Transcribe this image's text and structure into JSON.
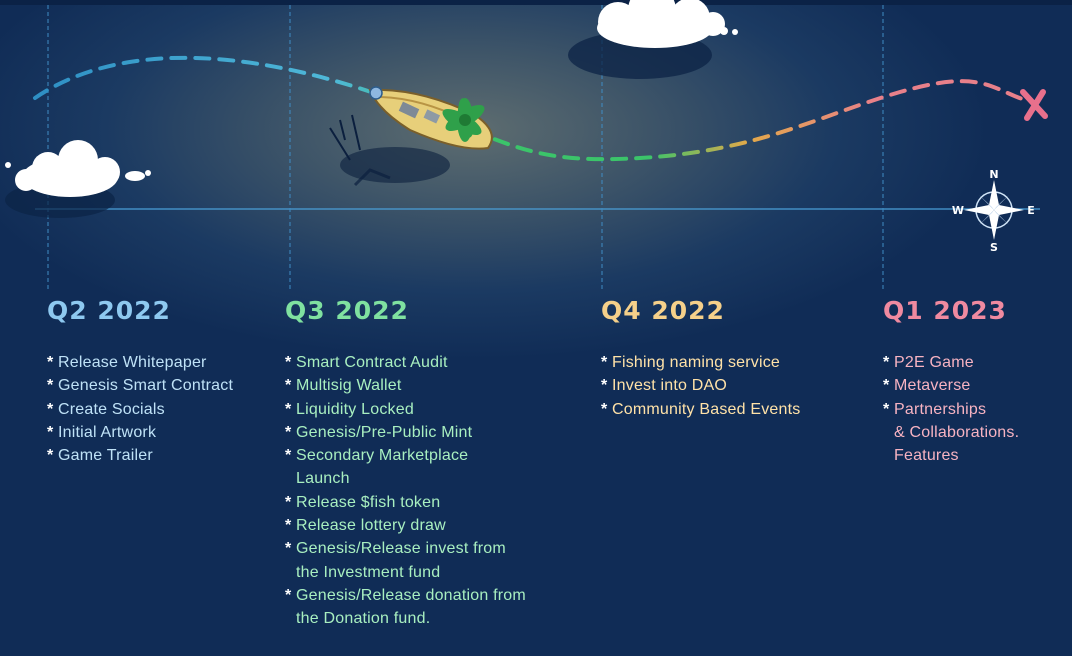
{
  "roadmap": {
    "phases": [
      {
        "title": "Q2 2022",
        "items": [
          "Release Whitepaper",
          "Genesis Smart Contract",
          "Create Socials",
          "Initial Artwork",
          "Game Trailer"
        ]
      },
      {
        "title": "Q3 2022",
        "items": [
          "Smart Contract Audit",
          "Multisig Wallet",
          "Liquidity Locked",
          "Genesis/Pre-Public Mint",
          "Secondary Marketplace\nLaunch",
          "Release $fish token",
          "Release lottery draw",
          "Genesis/Release invest from\nthe Investment fund",
          "Genesis/Release donation from\nthe Donation fund."
        ]
      },
      {
        "title": "Q4 2022",
        "items": [
          "Fishing naming service",
          "Invest into DAO",
          "Community Based Events"
        ]
      },
      {
        "title": "Q1 2023",
        "items": [
          "P2E Game",
          "Metaverse",
          "Partnerships\n& Collaborations.\nFeatures"
        ]
      }
    ]
  },
  "compass": {
    "north": "N",
    "south": "S",
    "east": "E",
    "west": "W"
  },
  "colors": {
    "background": "#102c56",
    "q2": "#8ec9f0",
    "q3": "#7fe1a0",
    "q4": "#f5d08a",
    "q1": "#f08aa0"
  }
}
